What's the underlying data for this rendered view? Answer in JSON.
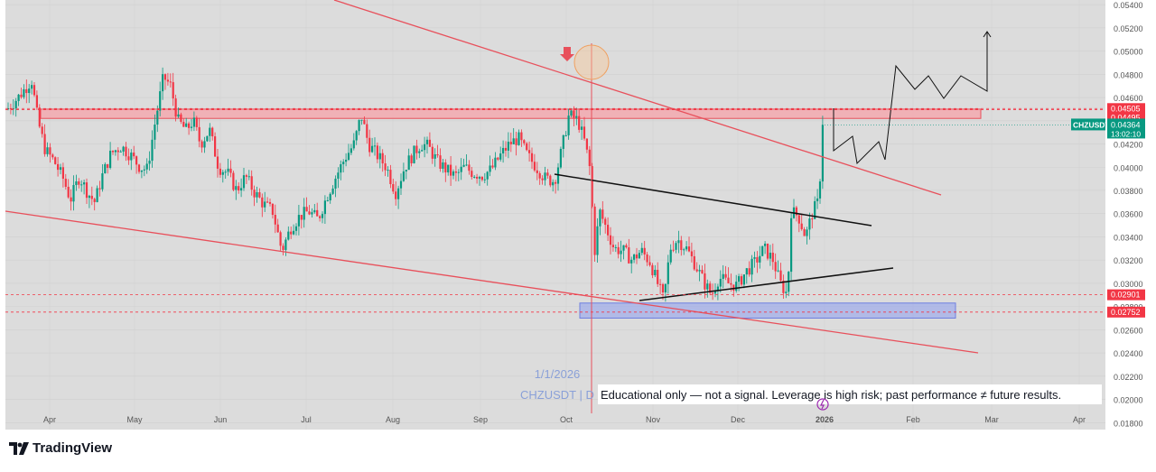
{
  "chart_data": {
    "type": "candlestick",
    "symbol": "CHZUSDT",
    "ylim": [
      0.0174,
      0.0544
    ],
    "y_ticks": [
      0.018,
      0.02,
      0.022,
      0.024,
      0.026,
      0.028,
      0.03,
      0.032,
      0.034,
      0.036,
      0.038,
      0.04,
      0.042,
      0.044,
      0.046,
      0.048,
      0.05,
      0.052,
      0.054
    ],
    "y_tick_labels": [
      "0.01800",
      "0.02000",
      "0.02200",
      "0.02400",
      "0.02600",
      "0.02800",
      "0.03000",
      "0.03200",
      "0.03400",
      "0.03600",
      "0.03800",
      "0.04000",
      "0.04200",
      "0.04400",
      "0.04600",
      "0.04800",
      "0.05000",
      "0.05200",
      "0.05400"
    ],
    "x_labels": [
      "Apr",
      "May",
      "Jun",
      "Jul",
      "Aug",
      "Sep",
      "Oct",
      "Nov",
      "Dec",
      "2026",
      "Feb",
      "Mar",
      "Apr"
    ],
    "price_levels": [
      {
        "value": 0.04505,
        "label": "0.04505",
        "color": "#f23645"
      },
      {
        "value": 0.04495,
        "label": "0.04495",
        "color": "#f23645"
      },
      {
        "value": 0.02901,
        "label": "0.02901",
        "color": "#f23645"
      },
      {
        "value": 0.02752,
        "label": "0.02752",
        "color": "#f23645"
      }
    ],
    "current_price": {
      "symbol": "CHZUSDT",
      "value": 0.04364,
      "label": "0.04364",
      "countdown": "13:02:10",
      "color": "#089981"
    },
    "resistance_zone": [
      0.0442,
      0.045
    ],
    "support_zone": [
      0.027,
      0.0283
    ],
    "vertical_marker": {
      "date_label": "1/1/2026"
    },
    "watermark": "CHZUSDT | D",
    "disclaimer": "Educational only — not a signal. Leverage is high risk; past performance ≠ future results.",
    "colors": {
      "up": "#089981",
      "down": "#f23645",
      "channel": "#e8505b",
      "trend": "#111111",
      "zone_red": "#f7a3a9",
      "zone_blue": "#8e9ef0"
    }
  },
  "footer": {
    "brand": "TradingView"
  }
}
